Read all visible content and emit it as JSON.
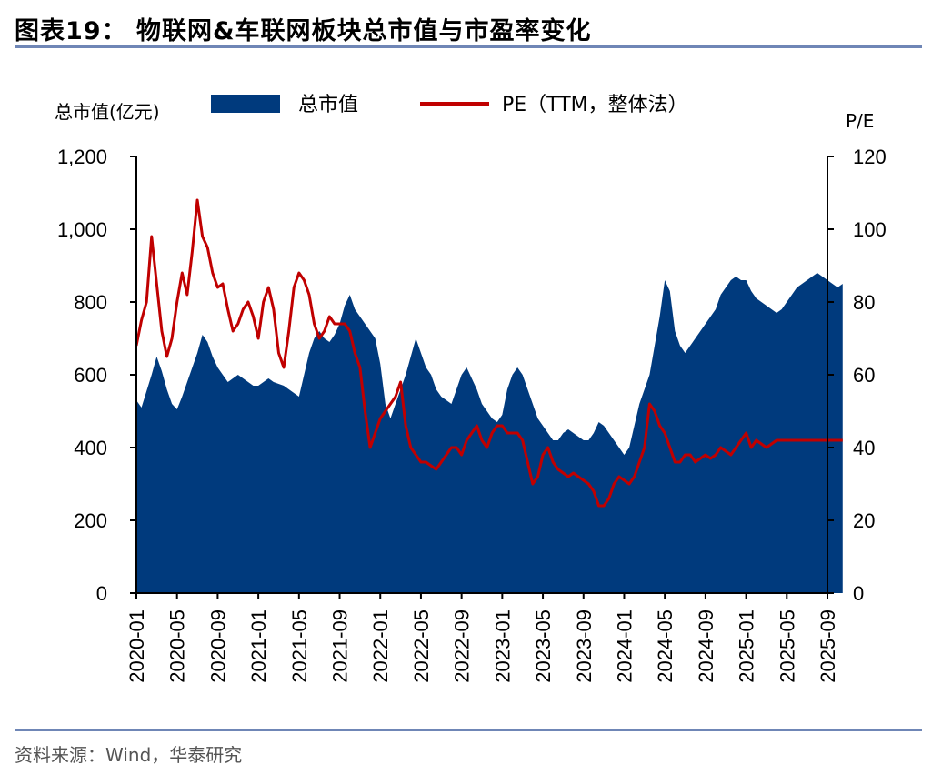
{
  "header": {
    "title": "图表19：  物联网&车联网板块总市值与市盈率变化"
  },
  "footer": {
    "source": "资料来源：Wind，华泰研究"
  },
  "chart_data": {
    "type": "area+line",
    "title": "物联网&车联网板块总市值与市盈率变化",
    "left_axis": {
      "label": "总市值(亿元)",
      "ylim": [
        0,
        1200
      ],
      "ticks": [
        "0",
        "200",
        "400",
        "600",
        "800",
        "1,000",
        "1,200"
      ]
    },
    "right_axis": {
      "label": "P/E",
      "ylim": [
        0,
        120
      ],
      "ticks": [
        "0",
        "20",
        "40",
        "60",
        "80",
        "100",
        "120"
      ]
    },
    "x_tick_labels": [
      "2020-01",
      "2020-05",
      "2020-09",
      "2021-01",
      "2021-05",
      "2021-09",
      "2022-01",
      "2022-05",
      "2022-09",
      "2023-01",
      "2023-05",
      "2023-09",
      "2024-01",
      "2024-05",
      "2024-09",
      "2025-01",
      "2025-05",
      "2025-09"
    ],
    "legend": {
      "position": "top",
      "items": [
        "总市值",
        "PE（TTM，整体法）"
      ]
    },
    "colors": {
      "area": "#003a7d",
      "line": "#c00000"
    },
    "series": [
      {
        "name": "总市值",
        "axis": "left",
        "x": [
          0,
          0.5,
          1,
          1.5,
          2,
          2.5,
          3,
          3.5,
          4,
          4.5,
          5,
          5.5,
          6,
          6.5,
          7,
          7.5,
          8,
          8.5,
          9,
          9.5,
          10,
          10.5,
          11,
          11.5,
          12,
          12.5,
          13,
          13.5,
          14,
          14.5,
          15,
          15.5,
          16,
          16.5,
          17,
          17.5,
          18,
          18.5,
          19,
          19.5,
          20,
          20.5,
          21,
          21.5,
          22,
          22.5,
          23,
          23.5,
          24,
          24.5,
          25,
          25.5,
          26,
          26.5,
          27,
          27.5,
          28,
          28.5,
          29,
          29.5,
          30,
          30.5,
          31,
          31.5,
          32,
          32.5,
          33,
          33.5,
          34,
          34.5,
          35,
          35.5,
          36,
          36.5,
          37,
          37.5,
          38,
          38.5,
          39,
          39.5,
          40,
          40.5,
          41,
          41.5,
          42,
          42.5,
          43,
          43.5,
          44,
          44.5,
          45,
          45.5,
          46,
          46.5,
          47,
          47.5,
          48,
          48.5,
          49,
          49.5,
          50,
          50.5,
          51,
          51.5,
          52,
          52.5,
          53,
          53.5,
          54,
          54.5,
          55,
          55.5,
          56,
          56.5,
          57,
          57.5,
          58,
          58.5,
          59,
          59.5,
          60,
          60.5,
          61,
          61.5,
          62,
          62.5,
          63,
          63.5,
          64,
          64.5,
          65,
          65.5,
          66,
          66.5,
          67,
          67.5,
          68,
          68.5,
          69,
          69.5
        ],
        "values": [
          530,
          510,
          555,
          600,
          650,
          610,
          560,
          520,
          505,
          540,
          580,
          620,
          660,
          710,
          690,
          650,
          620,
          600,
          580,
          590,
          600,
          590,
          580,
          570,
          570,
          580,
          590,
          580,
          575,
          570,
          560,
          550,
          540,
          600,
          660,
          700,
          720,
          700,
          690,
          710,
          740,
          790,
          820,
          780,
          760,
          740,
          720,
          700,
          630,
          520,
          480,
          520,
          560,
          600,
          650,
          700,
          660,
          620,
          600,
          560,
          540,
          530,
          520,
          560,
          600,
          620,
          590,
          560,
          520,
          500,
          480,
          470,
          490,
          560,
          600,
          620,
          600,
          560,
          520,
          480,
          460,
          440,
          420,
          420,
          440,
          450,
          440,
          430,
          420,
          420,
          440,
          470,
          460,
          440,
          420,
          400,
          380,
          400,
          460,
          520,
          560,
          600,
          680,
          760,
          860,
          830,
          720,
          680,
          660,
          680,
          700,
          720,
          740,
          760,
          780,
          820,
          840,
          860,
          870,
          860,
          860,
          830,
          810,
          800,
          790,
          780,
          770,
          780,
          800,
          820,
          840,
          850,
          860,
          870,
          880,
          870,
          860,
          850,
          840,
          850
        ]
      },
      {
        "name": "PE（TTM，整体法）",
        "axis": "right",
        "x": [
          0,
          0.5,
          1,
          1.5,
          2,
          2.5,
          3,
          3.5,
          4,
          4.5,
          5,
          5.5,
          6,
          6.5,
          7,
          7.5,
          8,
          8.5,
          9,
          9.5,
          10,
          10.5,
          11,
          11.5,
          12,
          12.5,
          13,
          13.5,
          14,
          14.5,
          15,
          15.5,
          16,
          16.5,
          17,
          17.5,
          18,
          18.5,
          19,
          19.5,
          20,
          20.5,
          21,
          21.5,
          22,
          22.5,
          23,
          23.5,
          24,
          24.5,
          25,
          25.5,
          26,
          26.5,
          27,
          27.5,
          28,
          28.5,
          29,
          29.5,
          30,
          30.5,
          31,
          31.5,
          32,
          32.5,
          33,
          33.5,
          34,
          34.5,
          35,
          35.5,
          36,
          36.5,
          37,
          37.5,
          38,
          38.5,
          39,
          39.5,
          40,
          40.5,
          41,
          41.5,
          42,
          42.5,
          43,
          43.5,
          44,
          44.5,
          45,
          45.5,
          46,
          46.5,
          47,
          47.5,
          48,
          48.5,
          49,
          49.5,
          50,
          50.5,
          51,
          51.5,
          52,
          52.5,
          53,
          53.5,
          54,
          54.5,
          55,
          55.5,
          56,
          56.5,
          57,
          57.5,
          58,
          58.5,
          59,
          59.5,
          60,
          60.5,
          61,
          61.5,
          62,
          62.5,
          63,
          63.5,
          64,
          64.5,
          65,
          65.5,
          66,
          66.5,
          67,
          67.5,
          68,
          68.5,
          69,
          69.5
        ],
        "values": [
          68,
          75,
          80,
          98,
          85,
          72,
          65,
          70,
          80,
          88,
          82,
          94,
          108,
          98,
          95,
          88,
          84,
          85,
          78,
          72,
          74,
          78,
          80,
          76,
          70,
          80,
          84,
          78,
          66,
          62,
          72,
          84,
          88,
          86,
          82,
          74,
          70,
          72,
          76,
          74,
          74,
          74,
          72,
          66,
          62,
          50,
          40,
          44,
          48,
          50,
          52,
          54,
          58,
          46,
          40,
          38,
          36,
          36,
          35,
          34,
          36,
          38,
          40,
          40,
          38,
          42,
          44,
          46,
          42,
          40,
          44,
          46,
          46,
          44,
          44,
          44,
          42,
          36,
          30,
          32,
          38,
          40,
          36,
          34,
          33,
          32,
          33,
          32,
          31,
          30,
          28,
          24,
          24,
          26,
          30,
          32,
          31,
          30,
          32,
          36,
          40,
          52,
          50,
          46,
          44,
          40,
          36,
          36,
          38,
          38,
          36,
          37,
          38,
          37,
          38,
          40,
          39,
          38,
          40,
          42,
          44,
          40,
          42,
          41,
          40,
          41,
          42,
          42,
          42,
          42,
          42,
          42,
          42,
          42,
          42,
          42,
          42,
          42,
          42,
          42
        ]
      }
    ]
  }
}
